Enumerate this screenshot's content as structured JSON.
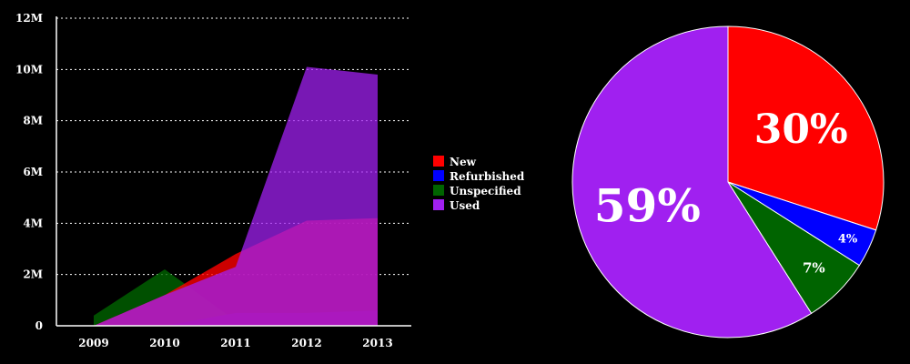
{
  "chart_data": [
    {
      "type": "area",
      "x": [
        "2009",
        "2010",
        "2011",
        "2012",
        "2013"
      ],
      "ylim": [
        0,
        12000000
      ],
      "yticks": [
        "0",
        "2M",
        "4M",
        "6M",
        "8M",
        "10M",
        "12M"
      ],
      "grid": true,
      "legend_position": "right",
      "series": [
        {
          "name": "New",
          "color": "#ff0000",
          "values": [
            0,
            1200000,
            2800000,
            4100000,
            4200000
          ]
        },
        {
          "name": "Refurbished",
          "color": "#0000ff",
          "values": [
            0,
            0,
            500000,
            500000,
            600000
          ]
        },
        {
          "name": "Unspecified",
          "color": "#006400",
          "values": [
            400000,
            2200000,
            200000,
            0,
            0
          ]
        },
        {
          "name": "Used",
          "color": "#a020f0",
          "values": [
            0,
            1200000,
            2300000,
            10100000,
            9800000
          ]
        }
      ]
    },
    {
      "type": "pie",
      "slices": [
        {
          "name": "New",
          "value": 30,
          "label": "30%",
          "color": "#ff0000"
        },
        {
          "name": "Refurbished",
          "value": 4,
          "label": "4%",
          "color": "#0000ff"
        },
        {
          "name": "Unspecified",
          "value": 7,
          "label": "7%",
          "color": "#006400"
        },
        {
          "name": "Used",
          "value": 59,
          "label": "59%",
          "color": "#a020f0"
        }
      ]
    }
  ]
}
